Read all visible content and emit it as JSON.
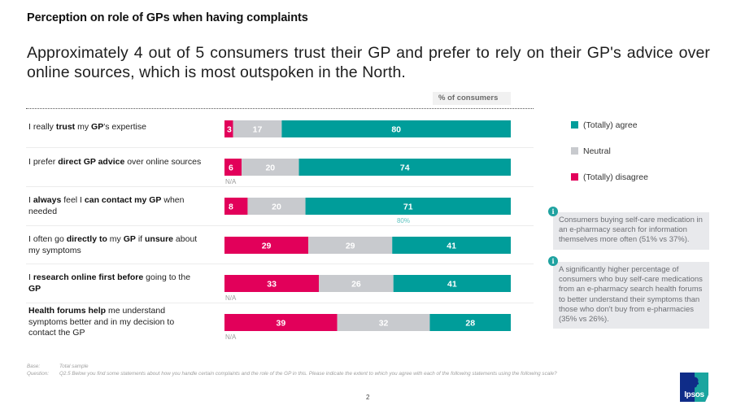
{
  "section_title": "Perception on role of GPs when having complaints",
  "headline": "Approximately 4 out of 5 consumers trust their GP and prefer to rely on their GP's advice over online sources, which is most outspoken in the North.",
  "unit_label": "% of consumers",
  "colors": {
    "disagree": "#e2005a",
    "neutral": "#c8cace",
    "agree": "#009d9a",
    "info_icon": "#1fa2a0",
    "info_bg": "#e8e9ec"
  },
  "rows": [
    {
      "label_parts": [
        [
          "I really ",
          false
        ],
        [
          "trust",
          true
        ],
        [
          " my ",
          false
        ],
        [
          "GP",
          true
        ],
        [
          "'s expertise",
          false
        ]
      ],
      "na": "",
      "note": ""
    },
    {
      "label_parts": [
        [
          "I prefer ",
          false
        ],
        [
          "direct GP advice",
          true
        ],
        [
          " over online sources",
          false
        ]
      ],
      "na": "N/A",
      "note": ""
    },
    {
      "label_parts": [
        [
          "I ",
          false
        ],
        [
          "always",
          true
        ],
        [
          " feel I ",
          false
        ],
        [
          "can contact my GP",
          true
        ],
        [
          " when needed",
          false
        ]
      ],
      "na": "",
      "note": "80%"
    },
    {
      "label_parts": [
        [
          "I often go ",
          false
        ],
        [
          "directly to",
          true
        ],
        [
          " my ",
          false
        ],
        [
          "GP",
          true
        ],
        [
          " if ",
          false
        ],
        [
          "unsure",
          true
        ],
        [
          " about my symptoms",
          false
        ]
      ],
      "na": "",
      "note": ""
    },
    {
      "label_parts": [
        [
          "I ",
          false
        ],
        [
          "research online first before",
          true
        ],
        [
          " going to the ",
          false
        ],
        [
          "GP",
          true
        ]
      ],
      "na": "N/A",
      "note": ""
    },
    {
      "label_parts": [
        [
          "Health forums help",
          true
        ],
        [
          " me understand symptoms better and in my decision to contact the GP",
          false
        ]
      ],
      "na": "N/A",
      "note": ""
    }
  ],
  "chart_data": {
    "type": "bar",
    "orientation": "horizontal",
    "stacked": true,
    "title": "Perception on role of GPs when having complaints",
    "xlabel": "% of consumers",
    "ylabel": "",
    "xlim": [
      0,
      100
    ],
    "grid": false,
    "legend_position": "right",
    "categories": [
      "I really trust my GP's expertise",
      "I prefer direct GP advice over online sources",
      "I always feel I can contact my GP when needed",
      "I often go directly to my GP if unsure about my symptoms",
      "I research online first before going to the GP",
      "Health forums help me understand symptoms better and in my decision to contact the GP"
    ],
    "series": [
      {
        "name": "(Totally) disagree",
        "values": [
          3,
          6,
          8,
          29,
          33,
          39
        ]
      },
      {
        "name": "Neutral",
        "values": [
          17,
          20,
          20,
          29,
          26,
          32
        ]
      },
      {
        "name": "(Totally) agree",
        "values": [
          80,
          74,
          71,
          41,
          41,
          28
        ]
      }
    ],
    "annotations": [
      {
        "category_index": 1,
        "text": "N/A"
      },
      {
        "category_index": 2,
        "text": "80%"
      },
      {
        "category_index": 4,
        "text": "N/A"
      },
      {
        "category_index": 5,
        "text": "N/A"
      }
    ]
  },
  "legend": [
    {
      "label": "(Totally) agree",
      "color": "#009d9a"
    },
    {
      "label": "Neutral",
      "color": "#c8cace"
    },
    {
      "label": "(Totally) disagree",
      "color": "#e2005a"
    }
  ],
  "info_boxes": [
    {
      "icon": "i",
      "text": "Consumers buying self-care medication in an e-pharmacy search for information themselves more often (51% vs 37%)."
    },
    {
      "icon": "i",
      "text": "A significantly higher percentage of consumers who buy self-care medications from an e-pharmacy search health forums to better understand their symptoms than those who don't buy from e-pharmacies (35% vs 26%)."
    }
  ],
  "footer": {
    "base_label": "Base:",
    "base_value": "Total sample",
    "question_label": "Question:",
    "question_value": "Q2.5 Below you find some statements about how you handle certain complaints and the role of the GP in this. Please indicate the extent to which you agree with each of the following statements using the following scale?"
  },
  "page_number": "2",
  "logo_text": "Ipsos"
}
